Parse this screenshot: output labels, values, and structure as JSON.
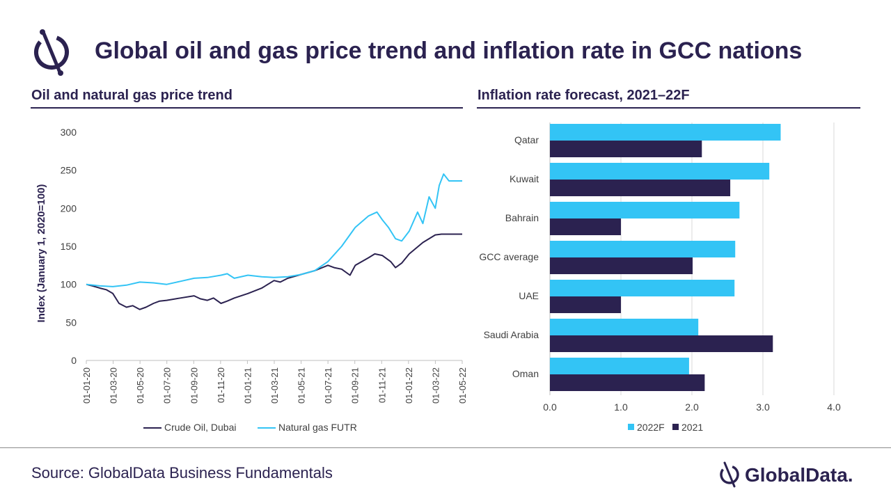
{
  "header": {
    "title": "Global oil and gas price trend and inflation rate in GCC nations"
  },
  "footer": {
    "source": "Source: GlobalData Business Fundamentals",
    "brand": "GlobalData."
  },
  "colors": {
    "navy": "#2b2250",
    "cyan": "#33c4f5",
    "grid": "#d9d9d9"
  },
  "icons": {
    "logo": "globaldata-logo-icon"
  },
  "chart_data": [
    {
      "type": "line",
      "title": "Oil and natural gas price trend",
      "xlabel": "",
      "ylabel": "Index (January 1, 2020=100)",
      "ylim": [
        0,
        300
      ],
      "yticks": [
        "0",
        "50",
        "100",
        "150",
        "200",
        "250",
        "300"
      ],
      "xticks": [
        "01-01-20",
        "01-03-20",
        "01-05-20",
        "01-07-20",
        "01-09-20",
        "01-11-20",
        "01-01-21",
        "01-03-21",
        "01-05-21",
        "01-07-21",
        "01-09-21",
        "01-11-21",
        "01-01-22",
        "01-03-22",
        "01-05-22"
      ],
      "grid": false,
      "legend": "bottom",
      "series": [
        {
          "name": "Crude Oil, Dubai",
          "color": "#2b2250",
          "x": [
            "2020-01-01",
            "2020-01-15",
            "2020-02-01",
            "2020-02-15",
            "2020-03-01",
            "2020-03-15",
            "2020-04-01",
            "2020-04-15",
            "2020-05-01",
            "2020-05-15",
            "2020-06-01",
            "2020-06-15",
            "2020-07-01",
            "2020-08-01",
            "2020-09-01",
            "2020-09-15",
            "2020-10-01",
            "2020-10-15",
            "2020-11-01",
            "2020-11-15",
            "2020-12-01",
            "2021-01-01",
            "2021-02-01",
            "2021-03-01",
            "2021-03-15",
            "2021-04-01",
            "2021-05-01",
            "2021-06-01",
            "2021-07-01",
            "2021-07-15",
            "2021-08-01",
            "2021-08-20",
            "2021-09-01",
            "2021-10-01",
            "2021-10-15",
            "2021-11-01",
            "2021-11-20",
            "2021-12-01",
            "2021-12-15",
            "2022-01-01",
            "2022-02-01",
            "2022-03-01",
            "2022-03-15",
            "2022-04-01",
            "2022-05-01"
          ],
          "y": [
            100,
            98,
            95,
            93,
            88,
            75,
            70,
            72,
            67,
            70,
            75,
            78,
            79,
            82,
            85,
            81,
            79,
            82,
            75,
            78,
            82,
            88,
            95,
            105,
            103,
            108,
            113,
            118,
            125,
            122,
            120,
            112,
            125,
            135,
            140,
            138,
            130,
            122,
            128,
            140,
            155,
            165,
            166,
            166,
            166
          ]
        },
        {
          "name": "Natural gas FUTR",
          "color": "#33c4f5",
          "x": [
            "2020-01-01",
            "2020-02-01",
            "2020-03-01",
            "2020-04-01",
            "2020-05-01",
            "2020-06-01",
            "2020-07-01",
            "2020-08-01",
            "2020-09-01",
            "2020-10-01",
            "2020-11-01",
            "2020-11-15",
            "2020-12-01",
            "2021-01-01",
            "2021-02-01",
            "2021-03-01",
            "2021-04-01",
            "2021-05-01",
            "2021-06-01",
            "2021-07-01",
            "2021-08-01",
            "2021-09-01",
            "2021-10-01",
            "2021-10-20",
            "2021-11-01",
            "2021-11-15",
            "2021-12-01",
            "2021-12-15",
            "2022-01-01",
            "2022-01-20",
            "2022-02-01",
            "2022-02-15",
            "2022-03-01",
            "2022-03-10",
            "2022-03-20",
            "2022-04-01",
            "2022-05-01"
          ],
          "y": [
            100,
            98,
            97,
            99,
            103,
            102,
            100,
            104,
            108,
            109,
            112,
            114,
            108,
            112,
            110,
            109,
            110,
            113,
            118,
            130,
            150,
            175,
            190,
            195,
            185,
            175,
            160,
            157,
            170,
            195,
            180,
            215,
            200,
            230,
            245,
            236,
            236
          ]
        }
      ]
    },
    {
      "type": "bar",
      "orientation": "horizontal",
      "title": "Inflation rate forecast, 2021–22F",
      "xlabel": "",
      "ylabel": "",
      "xlim": [
        0,
        4
      ],
      "xticks": [
        "0.0",
        "1.0",
        "2.0",
        "3.0",
        "4.0"
      ],
      "grid": true,
      "legend": "bottom",
      "categories": [
        "Qatar",
        "Kuwait",
        "Bahrain",
        "GCC average",
        "UAE",
        "Saudi Arabia",
        "Oman"
      ],
      "series": [
        {
          "name": "2022F",
          "color": "#33c4f5",
          "values": [
            3.25,
            3.09,
            2.67,
            2.61,
            2.6,
            2.09,
            1.96
          ]
        },
        {
          "name": "2021",
          "color": "#2b2250",
          "values": [
            2.14,
            2.54,
            1.0,
            2.01,
            1.0,
            3.14,
            2.18
          ]
        }
      ]
    }
  ]
}
